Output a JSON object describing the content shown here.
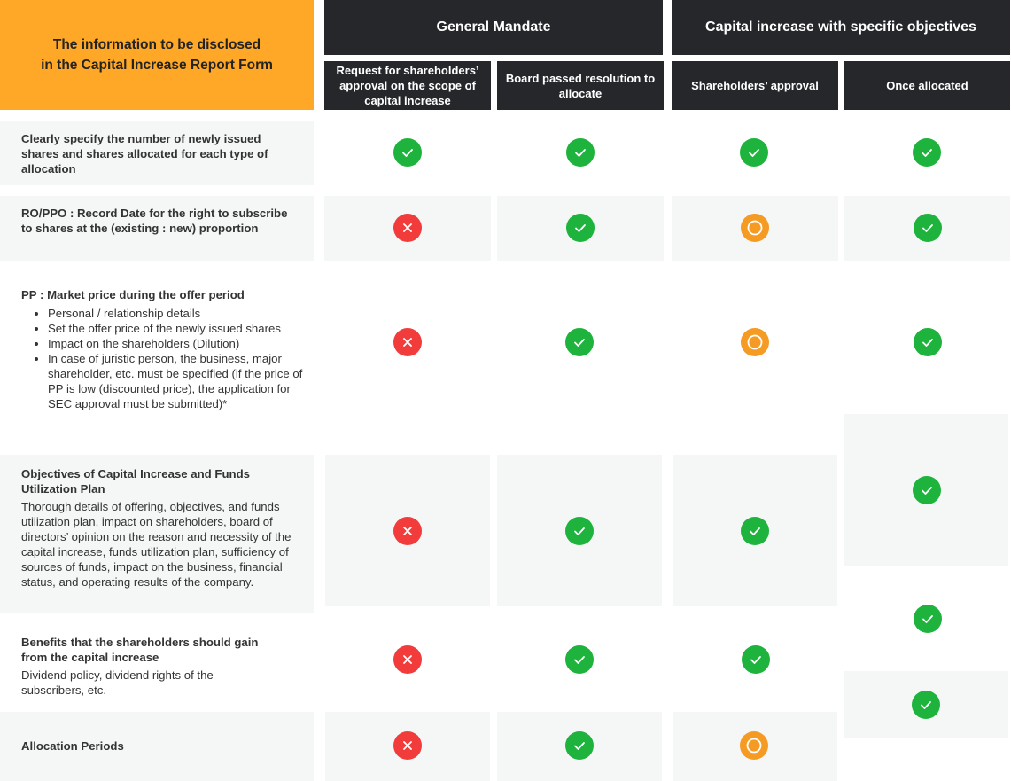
{
  "header": {
    "main_line1": "The information to be disclosed",
    "main_line2": "in the Capital Increase Report Form",
    "group_general": "General Mandate",
    "group_specific": "Capital increase with specific objectives",
    "sub_request": "Request for shareholders’ approval on the scope of capital increase",
    "sub_board": "Board passed resolution to allocate",
    "sub_shareholders": "Shareholders’ approval",
    "sub_once": "Once allocated"
  },
  "rows": [
    {
      "title": "Clearly specify the number of newly issued shares and shares allocated for each type of allocation"
    },
    {
      "title": "RO/PPO : Record Date for the right to subscribe to shares at the (existing : new) proportion"
    },
    {
      "title": "PP : Market price during the offer period",
      "bullets": [
        "Personal / relationship details",
        "Set the offer price of the newly issued shares",
        "Impact on the shareholders (Dilution)",
        "In case of juristic person, the business, major shareholder, etc. must be specified (if the price of PP is low (discounted price), the application for SEC approval must be submitted)*"
      ]
    },
    {
      "title": "Objectives of Capital Increase and Funds Utilization Plan",
      "desc": "Thorough details of offering, objectives, and funds utilization plan, impact on shareholders, board of directors’ opinion on the reason and necessity of the capital increase, funds utilization plan, sufficiency of sources of funds, impact on the business, financial status, and operating results of the company."
    },
    {
      "title": "Benefits that the shareholders should gain from the capital increase",
      "desc": "Dividend policy, dividend rights of the subscribers, etc."
    },
    {
      "title": "Allocation Periods"
    }
  ],
  "status_icons": {
    "check": "check-icon",
    "cross": "cross-icon",
    "partial": "circle-icon"
  },
  "colors": {
    "header_accent": "#ffa726",
    "header_dark": "#26272b",
    "check": "#1eb33c",
    "cross": "#f23c3c",
    "partial": "#f59a23",
    "row_bg": "#f5f6f6"
  }
}
